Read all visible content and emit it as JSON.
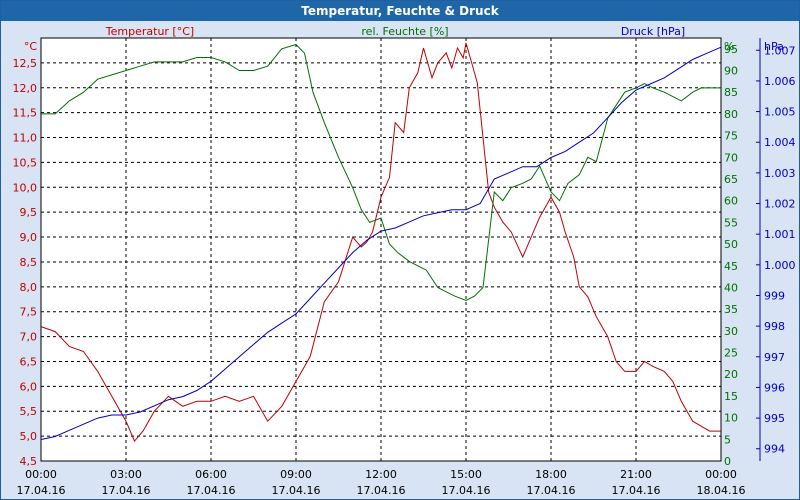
{
  "window": {
    "title": "Temperatur, Feuchte & Druck"
  },
  "colors": {
    "temperature": "#c00000",
    "humidity": "#007000",
    "pressure": "#0000c0",
    "grid": "#000000",
    "background": "#d8e4f4",
    "plot_bg": "#ffffff",
    "title_bar": "#1f66a8"
  },
  "chart_data": {
    "type": "line",
    "title": "Temperatur, Feuchte & Druck",
    "grid": true,
    "x_ticks": [
      {
        "time": "00:00",
        "date": "17.04.16"
      },
      {
        "time": "03:00",
        "date": "17.04.16"
      },
      {
        "time": "06:00",
        "date": "17.04.16"
      },
      {
        "time": "09:00",
        "date": "17.04.16"
      },
      {
        "time": "12:00",
        "date": "17.04.16"
      },
      {
        "time": "15:00",
        "date": "17.04.16"
      },
      {
        "time": "18:00",
        "date": "17.04.16"
      },
      {
        "time": "21:00",
        "date": "17.04.16"
      },
      {
        "time": "00:00",
        "date": "18.04.16"
      }
    ],
    "axes": {
      "temperature": {
        "label": "Temperatur [°C]",
        "unit": "°C",
        "range": [
          4.5,
          13.0
        ],
        "ticks": [
          "4,5",
          "5,0",
          "5,5",
          "6,0",
          "6,5",
          "7,0",
          "7,5",
          "8,0",
          "8,5",
          "9,0",
          "9,5",
          "10,0",
          "10,5",
          "11,0",
          "11,5",
          "12,0",
          "12,5"
        ]
      },
      "humidity": {
        "label": "rel. Feuchte [%]",
        "unit": "%",
        "range": [
          0,
          97.5
        ],
        "ticks": [
          "0",
          "5",
          "10",
          "15",
          "20",
          "25",
          "30",
          "35",
          "40",
          "45",
          "50",
          "55",
          "60",
          "65",
          "70",
          "75",
          "80",
          "85",
          "90",
          "95"
        ]
      },
      "pressure": {
        "label": "Druck [hPa]",
        "unit": "hPa",
        "range": [
          993.6,
          1007.4
        ],
        "ticks": [
          "994",
          "995",
          "996",
          "997",
          "998",
          "999",
          "1.000",
          "1.001",
          "1.002",
          "1.003",
          "1.004",
          "1.005",
          "1.006",
          "1.007"
        ]
      }
    },
    "series": [
      {
        "name": "Temperatur [°C]",
        "axis": "temperature",
        "x_hours": [
          0,
          0.5,
          1,
          1.5,
          2,
          2.5,
          3,
          3.3,
          3.6,
          4,
          4.5,
          5,
          5.5,
          6,
          6.5,
          7,
          7.5,
          8,
          8.5,
          9,
          9.5,
          10,
          10.5,
          11,
          11.3,
          11.5,
          11.7,
          12,
          12.3,
          12.5,
          12.8,
          13,
          13.3,
          13.5,
          13.8,
          14,
          14.3,
          14.5,
          14.7,
          14.9,
          15,
          15.2,
          15.4,
          15.6,
          15.8,
          16,
          16.3,
          16.6,
          17,
          17.3,
          17.6,
          18,
          18.3,
          18.5,
          18.8,
          19,
          19.3,
          19.6,
          20,
          20.3,
          20.6,
          21,
          21.3,
          21.6,
          22,
          22.3,
          22.6,
          23,
          23.3,
          23.6,
          24
        ],
        "values": [
          7.2,
          7.1,
          6.8,
          6.7,
          6.3,
          5.8,
          5.3,
          4.9,
          5.1,
          5.5,
          5.8,
          5.6,
          5.7,
          5.7,
          5.8,
          5.7,
          5.8,
          5.3,
          5.6,
          6.1,
          6.6,
          7.7,
          8.1,
          9.0,
          8.8,
          8.9,
          9.1,
          9.8,
          10.2,
          11.3,
          11.1,
          12.0,
          12.3,
          12.8,
          12.2,
          12.5,
          12.7,
          12.4,
          12.8,
          12.6,
          12.9,
          12.5,
          12.1,
          11.0,
          9.9,
          9.6,
          9.3,
          9.1,
          8.6,
          9.0,
          9.4,
          9.8,
          9.5,
          9.1,
          8.6,
          8.0,
          7.8,
          7.4,
          7.0,
          6.5,
          6.3,
          6.3,
          6.5,
          6.4,
          6.3,
          6.1,
          5.7,
          5.3,
          5.2,
          5.1,
          5.1
        ]
      },
      {
        "name": "rel. Feuchte [%]",
        "axis": "humidity",
        "x_hours": [
          0,
          0.5,
          1,
          1.5,
          2,
          2.5,
          3,
          3.5,
          4,
          4.5,
          5,
          5.5,
          6,
          6.5,
          7,
          7.5,
          8,
          8.5,
          9,
          9.3,
          9.6,
          10,
          10.5,
          11,
          11.3,
          11.6,
          12,
          12.3,
          12.6,
          13,
          13.3,
          13.6,
          14,
          14.3,
          14.6,
          15,
          15.3,
          15.6,
          16,
          16.3,
          16.6,
          17,
          17.3,
          17.6,
          18,
          18.3,
          18.6,
          19,
          19.3,
          19.6,
          20,
          20.3,
          20.6,
          21,
          21.3,
          21.6,
          22,
          22.3,
          22.6,
          23,
          23.3,
          23.6,
          24
        ],
        "values": [
          80,
          80,
          83,
          85,
          88,
          89,
          90,
          91,
          92,
          92,
          92,
          93,
          93,
          92,
          90,
          90,
          91,
          95,
          96,
          94,
          85,
          78,
          70,
          63,
          58,
          55,
          56,
          50,
          48,
          46,
          45,
          44,
          40,
          39,
          38,
          37,
          38,
          40,
          62,
          60,
          63,
          64,
          65,
          68,
          62,
          60,
          64,
          66,
          70,
          69,
          79,
          82,
          85,
          86,
          87,
          86,
          85,
          84,
          83,
          85,
          86,
          86,
          86
        ]
      },
      {
        "name": "Druck [hPa]",
        "axis": "pressure",
        "x_hours": [
          0,
          0.5,
          1,
          1.5,
          2,
          2.5,
          3,
          3.5,
          4,
          4.5,
          5,
          5.5,
          6,
          6.5,
          7,
          7.5,
          8,
          8.5,
          9,
          9.5,
          10,
          10.5,
          11,
          11.5,
          12,
          12.5,
          13,
          13.5,
          14,
          14.5,
          15,
          15.5,
          16,
          16.5,
          17,
          17.5,
          18,
          18.5,
          19,
          19.5,
          20,
          20.5,
          21,
          21.5,
          22,
          22.5,
          23,
          23.5,
          24
        ],
        "values": [
          994.3,
          994.4,
          994.6,
          994.8,
          995.0,
          995.1,
          995.1,
          995.2,
          995.4,
          995.6,
          995.7,
          995.9,
          996.2,
          996.6,
          997.0,
          997.4,
          997.8,
          998.1,
          998.4,
          998.9,
          999.4,
          999.9,
          1000.4,
          1000.8,
          1001.1,
          1001.2,
          1001.4,
          1001.6,
          1001.7,
          1001.8,
          1001.8,
          1002.0,
          1002.8,
          1003.0,
          1003.2,
          1003.2,
          1003.5,
          1003.7,
          1004.0,
          1004.3,
          1004.8,
          1005.3,
          1005.7,
          1005.9,
          1006.1,
          1006.4,
          1006.7,
          1006.9,
          1007.1
        ]
      }
    ]
  }
}
